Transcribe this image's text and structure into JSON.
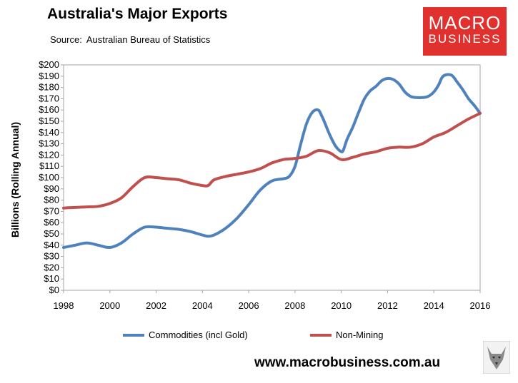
{
  "header": {
    "title": "Australia's Major Exports",
    "source_label": "Source:",
    "source_text": "Australian Bureau of Statistics"
  },
  "logo": {
    "line1": "MACRO",
    "line2": "BUSINESS"
  },
  "footer": {
    "url": "www.macrobusiness.com.au"
  },
  "colors": {
    "commodities": "#4f81bd",
    "non_mining": "#c0504d",
    "logo_bg": "#e0312e"
  },
  "chart_data": {
    "type": "line",
    "ylabel": "Billions (Rolling Annual)",
    "xlim": [
      1998,
      2016
    ],
    "ylim": [
      0,
      200
    ],
    "x_ticks": [
      "1998",
      "2000",
      "2002",
      "2004",
      "2006",
      "2008",
      "2010",
      "2012",
      "2014",
      "2016"
    ],
    "y_ticks": [
      "$0",
      "$10",
      "$20",
      "$30",
      "$40",
      "$50",
      "$60",
      "$70",
      "$80",
      "$90",
      "$100",
      "$110",
      "$120",
      "$130",
      "$140",
      "$150",
      "$160",
      "$170",
      "$180",
      "$190",
      "$200"
    ],
    "legend_position": "bottom",
    "grid": false,
    "series": [
      {
        "name": "Commodities (incl Gold)",
        "x": [
          1998,
          1998.5,
          1999,
          1999.5,
          2000,
          2000.5,
          2001,
          2001.5,
          2002,
          2002.5,
          2003,
          2003.5,
          2004,
          2004.25,
          2004.5,
          2005,
          2005.5,
          2006,
          2006.5,
          2007,
          2007.5,
          2007.75,
          2008,
          2008.25,
          2008.5,
          2008.75,
          2009,
          2009.15,
          2009.3,
          2009.5,
          2009.75,
          2010,
          2010.1,
          2010.25,
          2010.5,
          2010.75,
          2011,
          2011.25,
          2011.5,
          2011.75,
          2012,
          2012.25,
          2012.5,
          2012.75,
          2013,
          2013.25,
          2013.5,
          2013.75,
          2014,
          2014.2,
          2014.4,
          2014.75,
          2015,
          2015.25,
          2015.5,
          2015.75,
          2016
        ],
        "y": [
          38,
          40,
          42,
          40,
          38,
          42,
          50,
          56,
          56,
          55,
          54,
          52,
          49,
          48,
          49,
          55,
          64,
          76,
          89,
          97,
          99,
          101,
          110,
          130,
          148,
          158,
          160,
          155,
          148,
          138,
          128,
          123,
          125,
          134,
          145,
          158,
          170,
          177,
          181,
          186,
          188,
          187,
          183,
          176,
          172,
          171,
          171,
          172,
          176,
          182,
          190,
          191,
          185,
          178,
          170,
          164,
          157
        ]
      },
      {
        "name": "Non-Mining",
        "x": [
          1998,
          1998.5,
          1999,
          1999.5,
          2000,
          2000.5,
          2001,
          2001.5,
          2002,
          2002.5,
          2003,
          2003.5,
          2004,
          2004.25,
          2004.5,
          2005,
          2005.5,
          2006,
          2006.5,
          2007,
          2007.5,
          2008,
          2008.5,
          2009,
          2009.5,
          2010,
          2010.5,
          2011,
          2011.5,
          2012,
          2012.5,
          2013,
          2013.5,
          2014,
          2014.5,
          2015,
          2015.5,
          2016
        ],
        "y": [
          73,
          73.5,
          74,
          74.5,
          77,
          82,
          92,
          100,
          100,
          99,
          98,
          95,
          93,
          93,
          98,
          101,
          103,
          105,
          108,
          113,
          116,
          117,
          119,
          124,
          122,
          116,
          118,
          121,
          123,
          126,
          127,
          127,
          130,
          136,
          140,
          146,
          152,
          157
        ]
      }
    ]
  }
}
